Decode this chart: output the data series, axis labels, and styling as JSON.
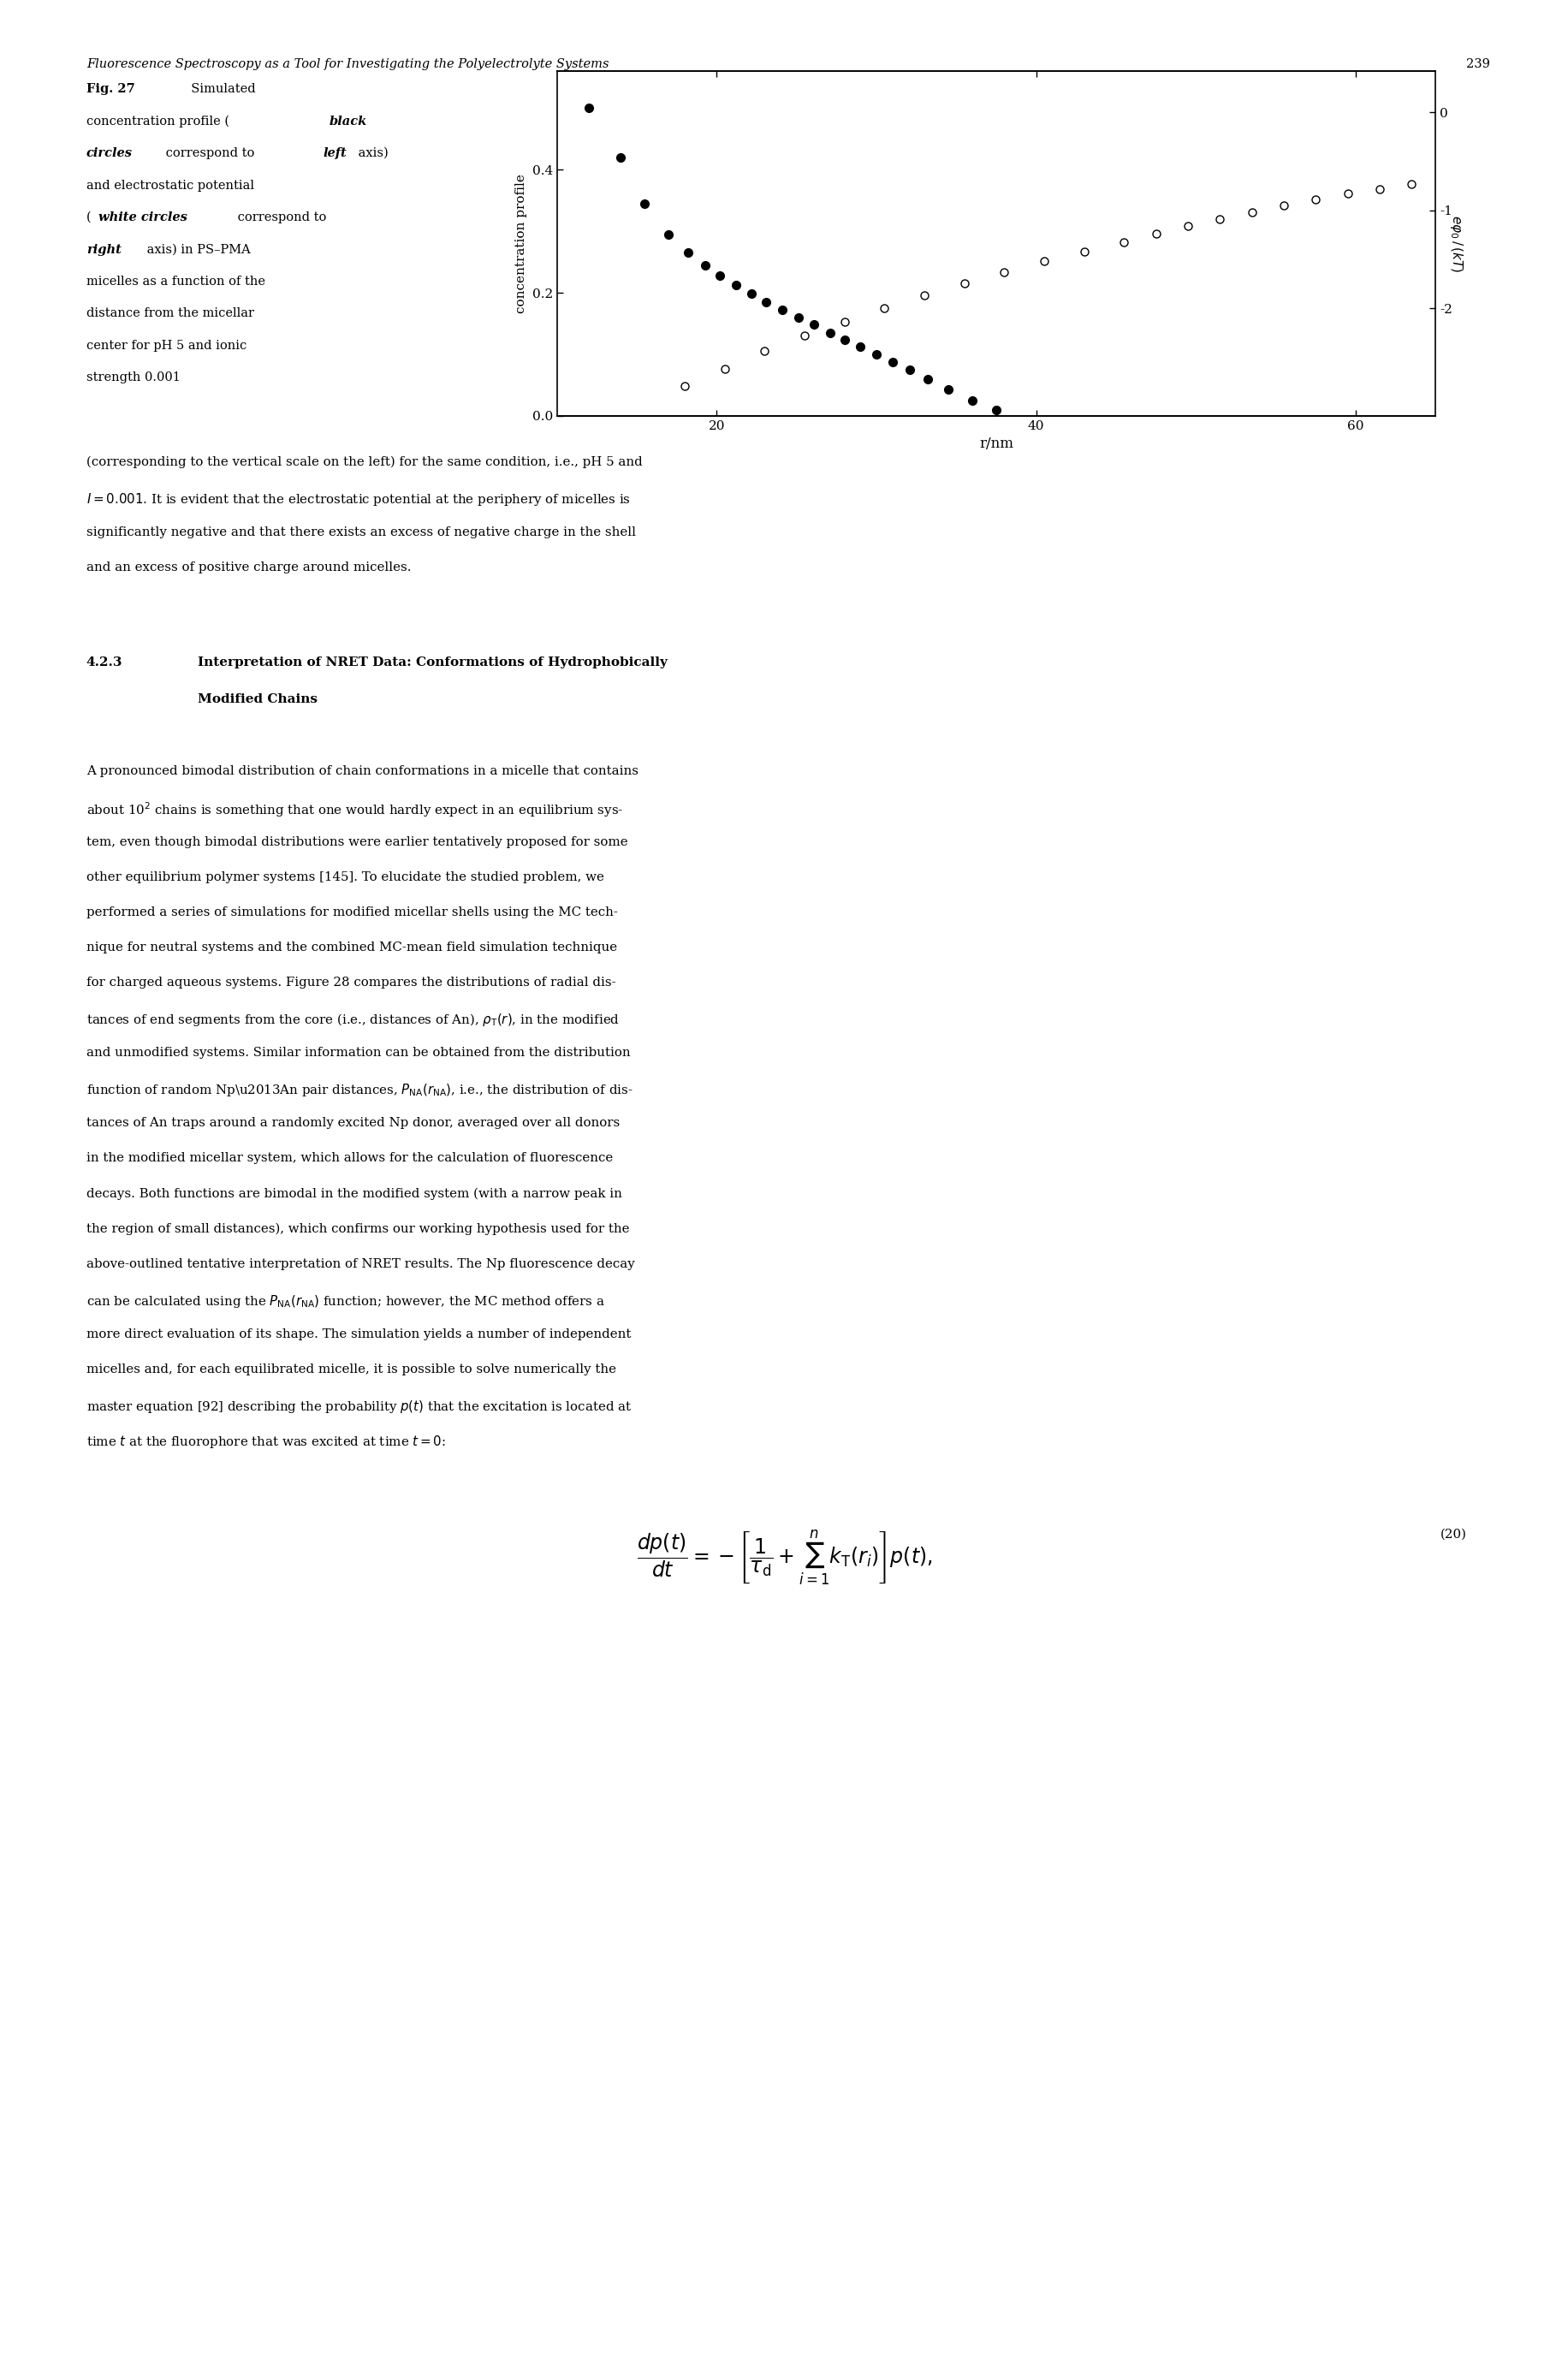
{
  "header_text": "Fluorescence Spectroscopy as a Tool for Investigating the Polyelectrolyte Systems",
  "page_number": "239",
  "ylabel_left": "concentration profile",
  "xlabel": "r/nm",
  "xlim": [
    10,
    65
  ],
  "ylim_left": [
    0.0,
    0.56
  ],
  "ylim_right": [
    -3.1,
    0.42
  ],
  "yticks_left": [
    0.0,
    0.2,
    0.4
  ],
  "yticks_right": [
    0,
    -1,
    -2
  ],
  "xticks": [
    20,
    40,
    60
  ],
  "black_x": [
    12.0,
    14.0,
    15.5,
    17.0,
    18.2,
    19.3,
    20.2,
    21.2,
    22.2,
    23.1,
    24.1,
    25.1,
    26.1,
    27.1,
    28.0,
    29.0,
    30.0,
    31.0,
    32.1,
    33.2,
    34.5,
    36.0,
    37.5
  ],
  "black_y": [
    0.5,
    0.42,
    0.345,
    0.295,
    0.265,
    0.245,
    0.228,
    0.212,
    0.198,
    0.185,
    0.172,
    0.16,
    0.148,
    0.135,
    0.123,
    0.112,
    0.1,
    0.088,
    0.075,
    0.06,
    0.043,
    0.025,
    0.01
  ],
  "white_x": [
    18.0,
    20.5,
    23.0,
    25.5,
    28.0,
    30.5,
    33.0,
    35.5,
    38.0,
    40.5,
    43.0,
    45.5,
    47.5,
    49.5,
    51.5,
    53.5,
    55.5,
    57.5,
    59.5,
    61.5,
    63.5
  ],
  "white_y_right": [
    -2.8,
    -2.62,
    -2.44,
    -2.28,
    -2.14,
    -2.0,
    -1.87,
    -1.75,
    -1.63,
    -1.52,
    -1.42,
    -1.33,
    -1.24,
    -1.16,
    -1.09,
    -1.02,
    -0.95,
    -0.89,
    -0.83,
    -0.78,
    -0.73
  ],
  "marker_size_black": 7,
  "marker_size_white": 6.5
}
